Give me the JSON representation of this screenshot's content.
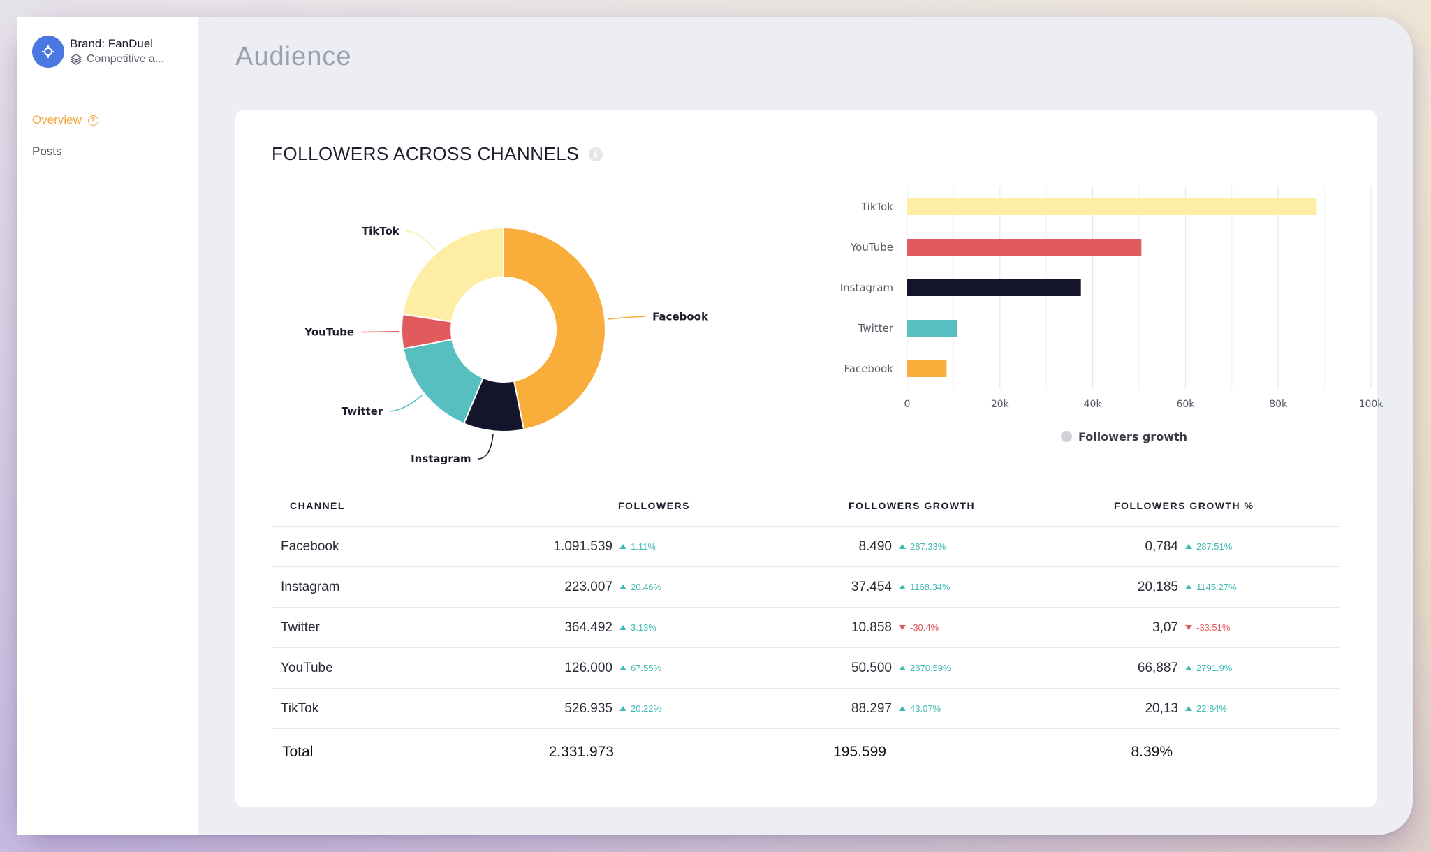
{
  "brand": {
    "name": "Brand: FanDuel",
    "subtitle": "Competitive a..."
  },
  "sidebar": {
    "items": [
      {
        "label": "Overview"
      },
      {
        "label": "Posts"
      }
    ]
  },
  "page": {
    "title": "Audience"
  },
  "card": {
    "title": "FOLLOWERS ACROSS CHANNELS"
  },
  "colors": {
    "Facebook": "#f9ae3c",
    "Instagram": "#14142b",
    "Twitter": "#57bfc0",
    "YouTube": "#e05a5e",
    "TikTok": "#feeda4",
    "up": "#3fb9b4",
    "down": "#e05a5a",
    "active_nav": "#f3a43e"
  },
  "chart_data": [
    {
      "type": "pie",
      "categories": [
        "Facebook",
        "Instagram",
        "Twitter",
        "YouTube",
        "TikTok"
      ],
      "values": [
        1091539,
        223007,
        364492,
        126000,
        526935
      ],
      "labels": [
        "Facebook",
        "Instagram",
        "Twitter",
        "YouTube",
        "TikTok"
      ]
    },
    {
      "type": "bar",
      "orientation": "horizontal",
      "categories": [
        "TikTok",
        "YouTube",
        "Instagram",
        "Twitter",
        "Facebook"
      ],
      "series": [
        {
          "name": "Followers growth",
          "values": [
            88297,
            50500,
            37454,
            10858,
            8490
          ]
        }
      ],
      "xlim": [
        0,
        100000
      ],
      "xticks": [
        "0",
        "20k",
        "40k",
        "60k",
        "80k",
        "100k"
      ],
      "grid": true,
      "legend": "bottom"
    }
  ],
  "table": {
    "headers": [
      "CHANNEL",
      "FOLLOWERS",
      "FOLLOWERS GROWTH",
      "FOLLOWERS GROWTH %"
    ],
    "rows": [
      {
        "channel": "Facebook",
        "followers": "1.091.539",
        "followers_delta": "1.11%",
        "followers_dir": "up",
        "growth": "8.490",
        "growth_delta": "287.33%",
        "growth_dir": "up",
        "growth_pct": "0,784",
        "growth_pct_delta": "287.51%",
        "growth_pct_dir": "up"
      },
      {
        "channel": "Instagram",
        "followers": "223.007",
        "followers_delta": "20.46%",
        "followers_dir": "up",
        "growth": "37.454",
        "growth_delta": "1168.34%",
        "growth_dir": "up",
        "growth_pct": "20,185",
        "growth_pct_delta": "1145.27%",
        "growth_pct_dir": "up"
      },
      {
        "channel": "Twitter",
        "followers": "364.492",
        "followers_delta": "3.13%",
        "followers_dir": "up",
        "growth": "10.858",
        "growth_delta": "-30.4%",
        "growth_dir": "down",
        "growth_pct": "3,07",
        "growth_pct_delta": "-33.51%",
        "growth_pct_dir": "down"
      },
      {
        "channel": "YouTube",
        "followers": "126.000",
        "followers_delta": "67.55%",
        "followers_dir": "up",
        "growth": "50.500",
        "growth_delta": "2870.59%",
        "growth_dir": "up",
        "growth_pct": "66,887",
        "growth_pct_delta": "2791.9%",
        "growth_pct_dir": "up"
      },
      {
        "channel": "TikTok",
        "followers": "526.935",
        "followers_delta": "20.22%",
        "followers_dir": "up",
        "growth": "88.297",
        "growth_delta": "43.07%",
        "growth_dir": "up",
        "growth_pct": "20,13",
        "growth_pct_delta": "22.84%",
        "growth_pct_dir": "up"
      }
    ],
    "total": {
      "label": "Total",
      "followers": "2.331.973",
      "growth": "195.599",
      "growth_pct": "8.39%"
    }
  }
}
